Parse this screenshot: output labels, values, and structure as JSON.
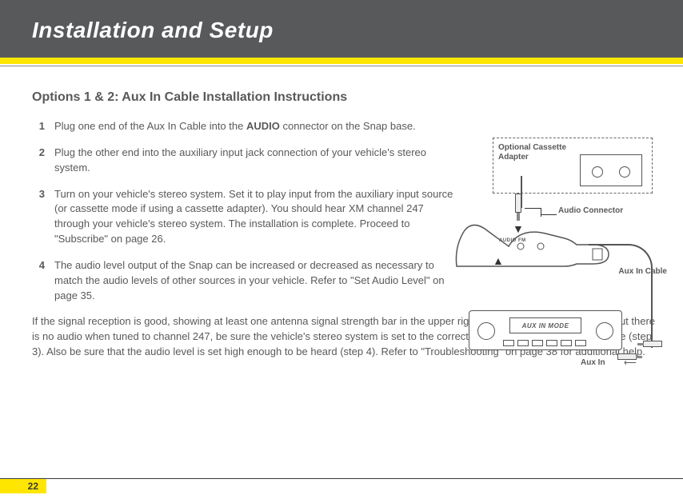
{
  "header": {
    "title": "Installation and Setup"
  },
  "page": {
    "subtitle": "Options 1 & 2: Aux In Cable Installation Instructions",
    "steps": [
      {
        "num": "1",
        "html": "Plug one end of the Aux In Cable into the <span class='bold'>AUDIO</span> connector on the Snap base."
      },
      {
        "num": "2",
        "html": "Plug the other end into the auxiliary input jack connection of your vehicle's stereo system."
      },
      {
        "num": "3",
        "html": "Turn on your vehicle's stereo system. Set it to play input from the auxiliary input source (or cassette mode if using a cassette adapter). You should hear XM channel 247 through your vehicle's stereo system. The installation is complete. Proceed to \"Subscribe\" on page 26."
      },
      {
        "num": "4",
        "html": "The audio level output of the Snap can be increased or decreased as necessary to match the audio levels of other sources in your vehicle. Refer to \"Set Audio Level\" on page 35."
      }
    ],
    "footer": "If the signal reception is good, showing at least one antenna signal strength bar in the upper right corner of the display screen, but there is no audio when tuned to channel 247, be sure the vehicle's stereo system is set to the correct source, i.e., auxiliary input source (step 3). Also be sure that the audio level is set high enough to be heard (step 4). Refer to \"Troubleshooting\" on page 38 for additional help.",
    "number": "22"
  },
  "diagram": {
    "cassette_label": "Optional Cassette Adapter",
    "audio_connector": "Audio Connector",
    "audio_fm": "AUDIO   FM",
    "aux_cable": "Aux In Cable",
    "stereo_display": "AUX IN MODE",
    "aux_in": "Aux In"
  },
  "colors": {
    "header_bg": "#58595b",
    "accent": "#ffe600",
    "text": "#58595b"
  }
}
